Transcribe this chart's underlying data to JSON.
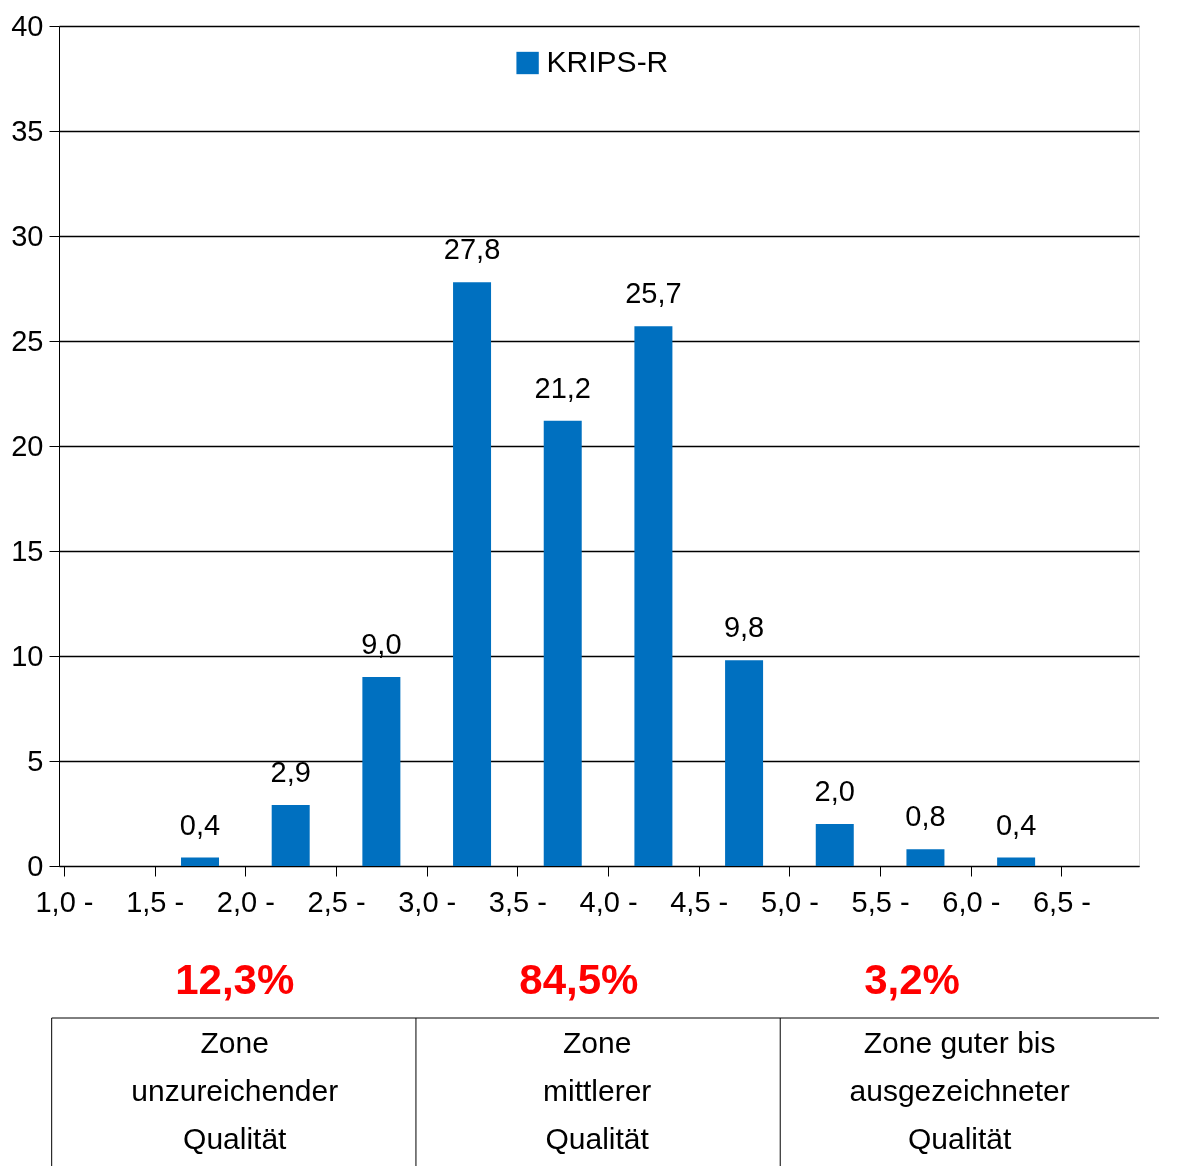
{
  "chart_data": {
    "type": "histogram",
    "bins": [
      1.0,
      1.5,
      2.0,
      2.5,
      3.0,
      3.5,
      4.0,
      4.5,
      5.0,
      5.5,
      6.0,
      6.5
    ],
    "series": [
      {
        "name": "KRIPS-R",
        "color": "#0070c0",
        "values": [
          0,
          0.4,
          2.9,
          9.0,
          27.8,
          21.2,
          25.7,
          9.8,
          2.0,
          0.8,
          0.4
        ],
        "value_labels": [
          null,
          "0,4",
          "2,9",
          "9,0",
          "27,8",
          "21,2",
          "25,7",
          "9,8",
          "2,0",
          "0,8",
          "0,4"
        ]
      }
    ],
    "xlim": [
      1.0,
      6.9
    ],
    "xticks": [
      {
        "value": 1.0,
        "label": "1,0 -"
      },
      {
        "value": 1.5,
        "label": "1,5 -"
      },
      {
        "value": 2.0,
        "label": "2,0 -"
      },
      {
        "value": 2.5,
        "label": "2,5 -"
      },
      {
        "value": 3.0,
        "label": "3,0 -"
      },
      {
        "value": 3.5,
        "label": "3,5 -"
      },
      {
        "value": 4.0,
        "label": "4,0 -"
      },
      {
        "value": 4.5,
        "label": "4,5 -"
      },
      {
        "value": 5.0,
        "label": "5,0 -"
      },
      {
        "value": 5.5,
        "label": "5,5 -"
      },
      {
        "value": 6.0,
        "label": "6,0 -"
      },
      {
        "value": 6.5,
        "label": "6,5 -"
      }
    ],
    "ylim": [
      0,
      40
    ],
    "yticks": [
      0,
      5,
      10,
      15,
      20,
      25,
      30,
      35,
      40
    ],
    "grid": "y",
    "legend": "top",
    "annotations": [
      "12,3%",
      "84,5%",
      "3,2%",
      "Zone\nunzureichender\nQualität",
      "Zone\nmittlerer\nQualität",
      "Zone guter bis\nausgezeichneter\nQualität"
    ]
  }
}
